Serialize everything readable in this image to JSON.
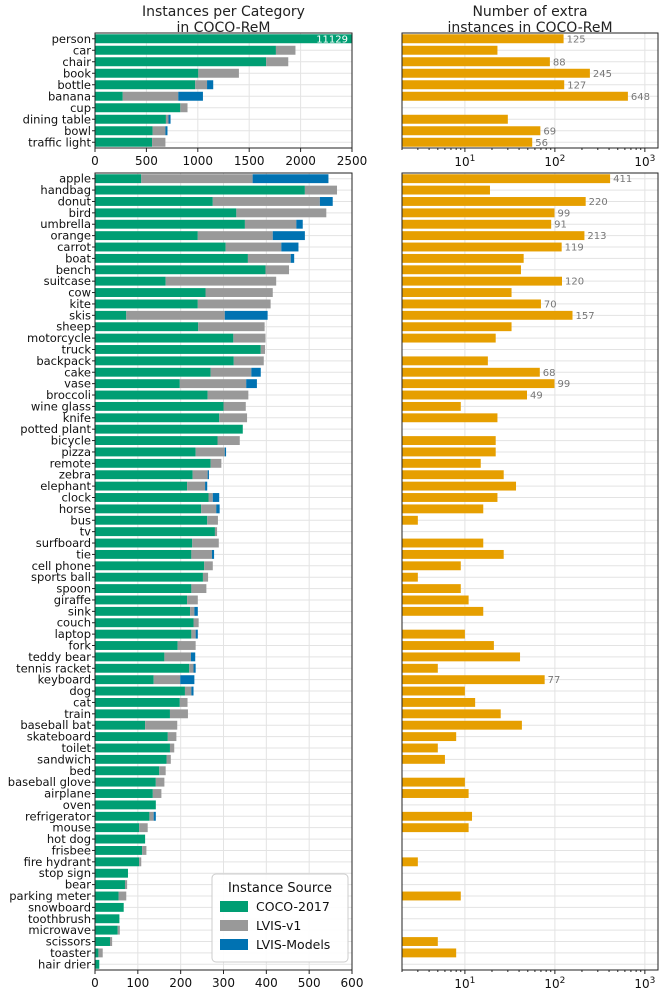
{
  "colors": {
    "coco": "#009e73",
    "lvis": "#999999",
    "models": "#0072b2",
    "extra": "#e69f00"
  },
  "chart_data": [
    {
      "type": "bar",
      "orientation": "horizontal",
      "stacked": true,
      "title": "Instances per Category\nin COCO-ReM",
      "xlim": [
        0,
        2500
      ],
      "xticks": [
        0,
        500,
        1000,
        1500,
        2000,
        2500
      ],
      "categories": [
        "person",
        "car",
        "chair",
        "book",
        "bottle",
        "banana",
        "cup",
        "dining table",
        "bowl",
        "traffic light"
      ],
      "series": [
        {
          "name": "COCO-2017",
          "values": [
            2500,
            1760,
            1665,
            1005,
            975,
            270,
            830,
            690,
            560,
            555
          ]
        },
        {
          "name": "LVIS-v1",
          "values": [
            0,
            190,
            215,
            395,
            115,
            540,
            70,
            25,
            125,
            130
          ]
        },
        {
          "name": "LVIS-Models",
          "values": [
            0,
            0,
            0,
            0,
            60,
            240,
            0,
            20,
            20,
            0
          ]
        }
      ],
      "bar_labels": [
        {
          "category": "person",
          "text": "11129"
        }
      ]
    },
    {
      "type": "bar",
      "orientation": "horizontal",
      "xscale": "log",
      "title": "Number of extra\ninstances in COCO-ReM",
      "xlim": [
        2,
        1400
      ],
      "xticks": [
        "10^1",
        "10^2",
        "10^3"
      ],
      "categories": [
        "person",
        "car",
        "chair",
        "book",
        "bottle",
        "banana",
        "cup",
        "dining table",
        "bowl",
        "traffic light"
      ],
      "values": [
        125,
        23,
        88,
        245,
        127,
        648,
        0,
        30,
        69,
        56
      ],
      "labels": [
        "125",
        "",
        "88",
        "245",
        "127",
        "648",
        "",
        "",
        "69",
        "56"
      ]
    },
    {
      "type": "bar",
      "orientation": "horizontal",
      "stacked": true,
      "xlim": [
        0,
        600
      ],
      "xticks": [
        0,
        100,
        200,
        300,
        400,
        500,
        600
      ],
      "categories": [
        "apple",
        "handbag",
        "donut",
        "bird",
        "umbrella",
        "orange",
        "carrot",
        "boat",
        "bench",
        "suitcase",
        "cow",
        "kite",
        "skis",
        "sheep",
        "motorcycle",
        "truck",
        "backpack",
        "cake",
        "vase",
        "broccoli",
        "wine glass",
        "knife",
        "potted plant",
        "bicycle",
        "pizza",
        "remote",
        "zebra",
        "elephant",
        "clock",
        "horse",
        "bus",
        "tv",
        "surfboard",
        "tie",
        "cell phone",
        "sports ball",
        "spoon",
        "giraffe",
        "sink",
        "couch",
        "laptop",
        "fork",
        "teddy bear",
        "tennis racket",
        "keyboard",
        "dog",
        "cat",
        "train",
        "baseball bat",
        "skateboard",
        "toilet",
        "sandwich",
        "bed",
        "baseball glove",
        "airplane",
        "oven",
        "refrigerator",
        "mouse",
        "hot dog",
        "frisbee",
        "fire hydrant",
        "stop sign",
        "bear",
        "parking meter",
        "snowboard",
        "toothbrush",
        "microwave",
        "scissors",
        "toaster",
        "hair drier"
      ],
      "series": [
        {
          "name": "COCO-2017",
          "values": [
            108,
            490,
            275,
            330,
            350,
            240,
            305,
            357,
            398,
            165,
            258,
            240,
            73,
            241,
            323,
            387,
            324,
            270,
            198,
            263,
            300,
            290,
            345,
            286,
            235,
            270,
            228,
            215,
            265,
            248,
            262,
            280,
            227,
            225,
            255,
            252,
            225,
            215,
            222,
            230,
            225,
            193,
            162,
            220,
            137,
            210,
            198,
            175,
            117,
            170,
            175,
            167,
            150,
            142,
            135,
            142,
            127,
            103,
            117,
            110,
            103,
            77,
            70,
            55,
            67,
            57,
            53,
            35,
            8,
            10
          ]
        },
        {
          "name": "LVIS-v1",
          "values": [
            260,
            75,
            250,
            210,
            120,
            175,
            130,
            100,
            55,
            258,
            157,
            170,
            230,
            155,
            75,
            10,
            70,
            95,
            155,
            95,
            52,
            65,
            0,
            52,
            68,
            25,
            35,
            42,
            10,
            35,
            25,
            5,
            62,
            48,
            20,
            12,
            35,
            25,
            10,
            12,
            10,
            42,
            62,
            10,
            62,
            15,
            18,
            42,
            75,
            20,
            10,
            10,
            15,
            20,
            20,
            0,
            10,
            20,
            0,
            10,
            5,
            0,
            5,
            18,
            0,
            0,
            5,
            5,
            10,
            0
          ]
        },
        {
          "name": "LVIS-Models",
          "values": [
            177,
            0,
            30,
            0,
            15,
            75,
            40,
            8,
            0,
            0,
            0,
            0,
            100,
            0,
            0,
            0,
            0,
            22,
            25,
            0,
            0,
            0,
            0,
            0,
            3,
            0,
            3,
            5,
            15,
            8,
            0,
            0,
            0,
            5,
            0,
            0,
            0,
            0,
            8,
            0,
            5,
            0,
            10,
            5,
            33,
            5,
            0,
            0,
            0,
            0,
            0,
            0,
            0,
            0,
            0,
            0,
            5,
            0,
            0,
            0,
            0,
            0,
            0,
            0,
            0,
            0,
            0,
            0,
            0,
            0
          ]
        }
      ],
      "legend": {
        "title": "Instance Source",
        "entries": [
          "COCO-2017",
          "LVIS-v1",
          "LVIS-Models"
        ],
        "location": "lower-right"
      }
    },
    {
      "type": "bar",
      "orientation": "horizontal",
      "xscale": "log",
      "xlim": [
        2,
        1400
      ],
      "xticks": [
        "10^1",
        "10^2",
        "10^3"
      ],
      "categories": [
        "apple",
        "handbag",
        "donut",
        "bird",
        "umbrella",
        "orange",
        "carrot",
        "boat",
        "bench",
        "suitcase",
        "cow",
        "kite",
        "skis",
        "sheep",
        "motorcycle",
        "truck",
        "backpack",
        "cake",
        "vase",
        "broccoli",
        "wine glass",
        "knife",
        "potted plant",
        "bicycle",
        "pizza",
        "remote",
        "zebra",
        "elephant",
        "clock",
        "horse",
        "bus",
        "tv",
        "surfboard",
        "tie",
        "cell phone",
        "sports ball",
        "spoon",
        "giraffe",
        "sink",
        "couch",
        "laptop",
        "fork",
        "teddy bear",
        "tennis racket",
        "keyboard",
        "dog",
        "cat",
        "train",
        "baseball bat",
        "skateboard",
        "toilet",
        "sandwich",
        "bed",
        "baseball glove",
        "airplane",
        "oven",
        "refrigerator",
        "mouse",
        "hot dog",
        "frisbee",
        "fire hydrant",
        "stop sign",
        "bear",
        "parking meter",
        "snowboard",
        "toothbrush",
        "microwave",
        "scissors",
        "toaster",
        "hair drier"
      ],
      "values": [
        411,
        19,
        220,
        99,
        91,
        213,
        119,
        45,
        42,
        120,
        33,
        70,
        157,
        33,
        22,
        0,
        18,
        68,
        99,
        49,
        9,
        23,
        0,
        22,
        22,
        15,
        27,
        37,
        23,
        16,
        3,
        0,
        16,
        27,
        9,
        3,
        9,
        11,
        16,
        0,
        10,
        21,
        41,
        5,
        77,
        10,
        13,
        25,
        43,
        8,
        5,
        6,
        0,
        10,
        11,
        0,
        12,
        11,
        0,
        0,
        3,
        0,
        0,
        9,
        0,
        0,
        0,
        5,
        8,
        0
      ],
      "labels": [
        "411",
        "",
        "220",
        "99",
        "91",
        "213",
        "119",
        "",
        "",
        "120",
        "",
        "70",
        "157",
        "",
        "",
        "",
        "",
        "68",
        "99",
        "49",
        "",
        "",
        "",
        "",
        "",
        "",
        "",
        "",
        "",
        "",
        "",
        "",
        "",
        "",
        "",
        "",
        "",
        "",
        "",
        "",
        "",
        "",
        "",
        "",
        "77",
        "",
        "",
        "",
        "",
        "",
        "",
        "",
        "",
        "",
        "",
        "",
        "",
        "",
        "",
        "",
        "",
        "",
        "",
        "",
        "",
        "",
        "",
        "",
        "",
        ""
      ]
    }
  ]
}
